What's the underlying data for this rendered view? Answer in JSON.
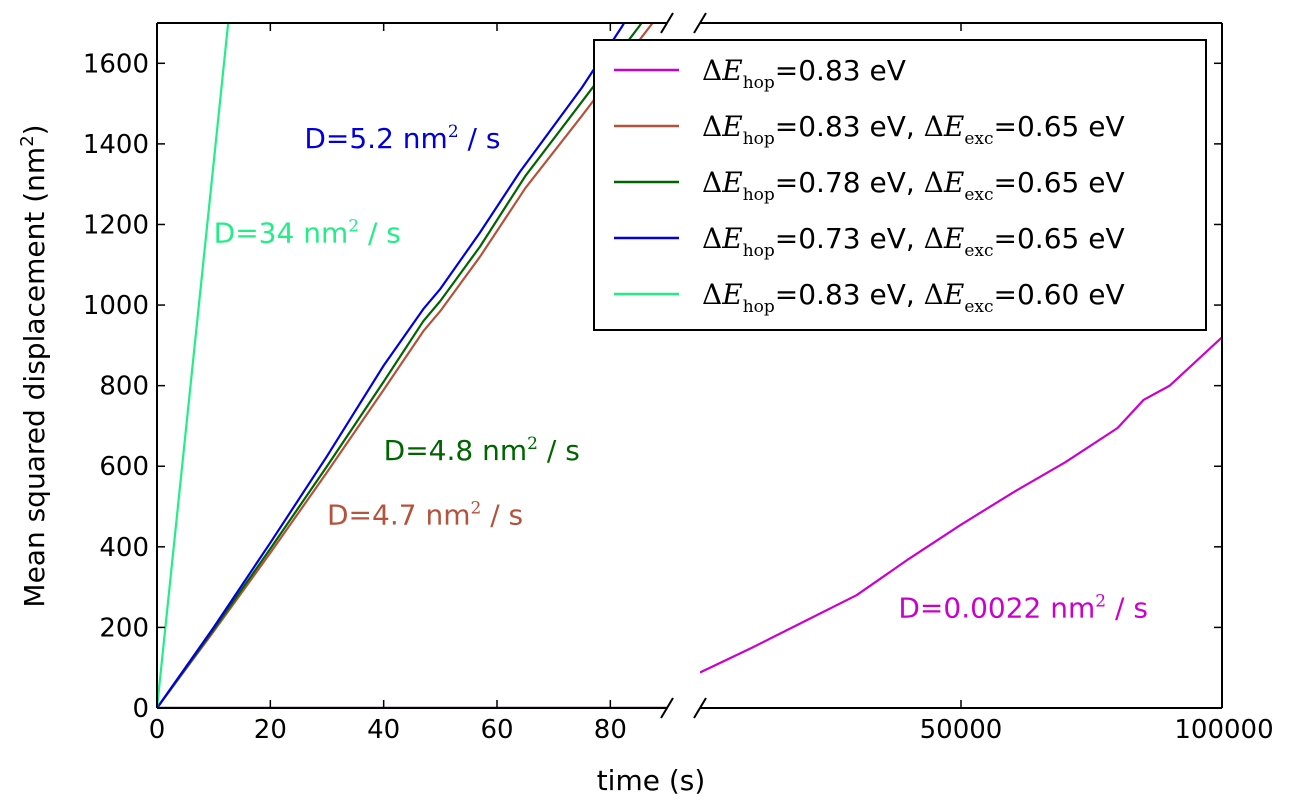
{
  "chart_data": {
    "type": "line",
    "title": "",
    "xlabel": "time (s)",
    "ylabel": "Mean squared displacement (nm",
    "ylabel_sup": "2",
    "ylabel_close": ")",
    "ylim": [
      0,
      1700
    ],
    "yticks": [
      0,
      200,
      400,
      600,
      800,
      1000,
      1200,
      1400,
      1600
    ],
    "ytick_labels": [
      "0",
      "200",
      "400",
      "600",
      "800",
      "1000",
      "1200",
      "1400",
      "1600"
    ],
    "left_panel": {
      "xlim": [
        0,
        90
      ],
      "xticks": [
        0,
        20,
        40,
        60,
        80
      ],
      "xtick_labels": [
        "0",
        "20",
        "40",
        "60",
        "80"
      ]
    },
    "right_panel": {
      "xlim": [
        0,
        100000
      ],
      "xticks": [
        50000,
        100000
      ],
      "xtick_labels": [
        "50000",
        "100000"
      ]
    },
    "series": [
      {
        "name": "dE_hop=0.83 eV",
        "color": "#cc00cc",
        "panel": "right",
        "x": [
          0,
          10000,
          20000,
          30000,
          40000,
          50000,
          60000,
          70000,
          80000,
          85000,
          90000,
          100000
        ],
        "y": [
          88,
          150,
          215,
          280,
          370,
          455,
          535,
          610,
          695,
          765,
          800,
          920
        ]
      },
      {
        "name": "dE_hop=0.83 eV, dE_exc=0.65 eV",
        "color": "#b5523b",
        "panel": "left",
        "x": [
          0,
          10,
          20,
          30,
          40,
          47,
          50,
          57,
          65,
          75,
          85,
          91
        ],
        "y": [
          0,
          190,
          385,
          585,
          790,
          935,
          985,
          1120,
          1290,
          1470,
          1655,
          1765
        ]
      },
      {
        "name": "dE_hop=0.78 eV, dE_exc=0.65 eV",
        "color": "#006400",
        "panel": "left",
        "x": [
          0,
          10,
          20,
          30,
          40,
          47,
          50,
          57,
          65,
          75,
          85,
          90
        ],
        "y": [
          0,
          195,
          395,
          600,
          810,
          960,
          1010,
          1145,
          1320,
          1505,
          1690,
          1790
        ]
      },
      {
        "name": "dE_hop=0.73 eV, dE_exc=0.65 eV",
        "color": "#0000dd",
        "panel": "left",
        "x": [
          0,
          10,
          20,
          30,
          40,
          47,
          50,
          57,
          64,
          75,
          82,
          85
        ],
        "y": [
          0,
          200,
          410,
          625,
          850,
          990,
          1040,
          1180,
          1330,
          1540,
          1690,
          1760
        ]
      },
      {
        "name": "dE_hop=0.83 eV, dE_exc=0.60 eV",
        "color": "#22ee88",
        "panel": "left",
        "x": [
          0,
          13
        ],
        "y": [
          0,
          1760
        ]
      }
    ],
    "legend": {
      "placement": "top-right",
      "entries": [
        {
          "color": "#cc00cc",
          "hop": "=0.83 eV",
          "exc": ""
        },
        {
          "color": "#b5523b",
          "hop": "=0.83 eV,",
          "exc": "=0.65 eV"
        },
        {
          "color": "#006400",
          "hop": "=0.78 eV,",
          "exc": "=0.65 eV"
        },
        {
          "color": "#0000dd",
          "hop": "=0.73 eV,",
          "exc": "=0.65 eV"
        },
        {
          "color": "#22ee88",
          "hop": "=0.83 eV,",
          "exc": "=0.60 eV"
        }
      ],
      "delta_symbol": "Δ",
      "e_symbol": "E",
      "hop_sub": "hop",
      "exc_sub": "exc"
    },
    "annotations": [
      {
        "prefix": "D=5.2 nm",
        "sup": "2",
        "suffix": " / s",
        "color": "#0000dd",
        "panel": "left",
        "x": 26,
        "y": 1390
      },
      {
        "prefix": "D=34 nm",
        "sup": "2",
        "suffix": " / s",
        "color": "#22ee88",
        "panel": "left",
        "x": 10,
        "y": 1155
      },
      {
        "prefix": "D=4.8 nm",
        "sup": "2",
        "suffix": " / s",
        "color": "#006400",
        "panel": "left",
        "x": 40,
        "y": 615
      },
      {
        "prefix": "D=4.7 nm",
        "sup": "2",
        "suffix": " / s",
        "color": "#b5523b",
        "panel": "left",
        "x": 30,
        "y": 455
      },
      {
        "prefix": "D=0.0022 nm",
        "sup": "2",
        "suffix": " / s",
        "color": "#cc00cc",
        "panel": "right",
        "x": 38000,
        "y": 225
      }
    ]
  }
}
